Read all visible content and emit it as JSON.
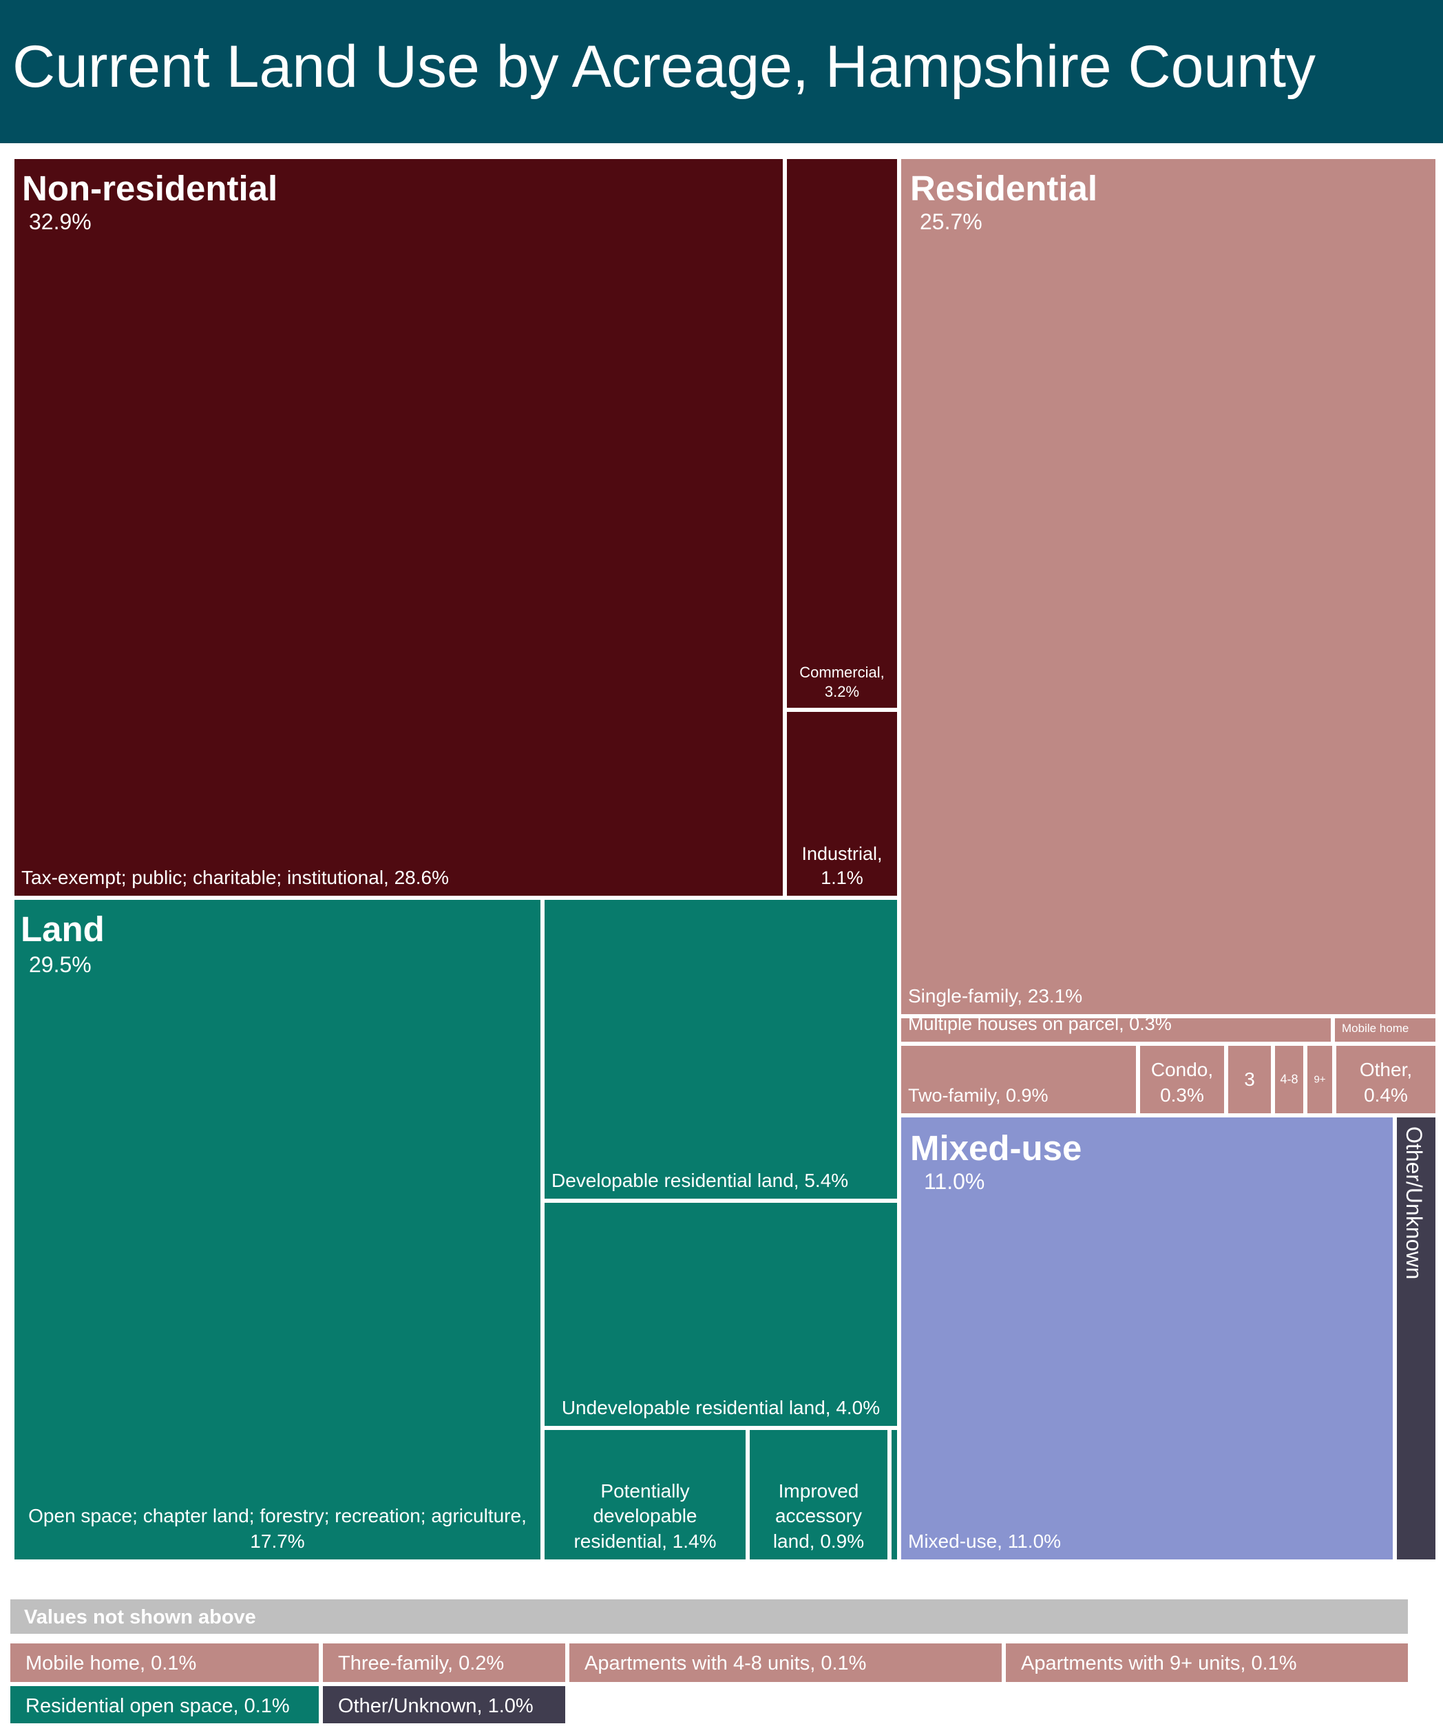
{
  "title": "Current Land Use by Acreage, Hampshire County",
  "colors": {
    "title_bg": "#024e5f",
    "non_residential": "#4f0a11",
    "land": "#087b6c",
    "residential": "#be8985",
    "mixed_use": "#8994d0",
    "other_unknown": "#403d4f",
    "not_shown_header": "#bfbfbf"
  },
  "chart_data": {
    "type": "treemap",
    "title": "Current Land Use by Acreage, Hampshire County",
    "unit": "% of acreage",
    "groups": [
      {
        "name": "Non-residential",
        "total_label": "32.9%",
        "value": 32.9,
        "items": [
          {
            "label": "Tax-exempt; public; charitable; institutional, 28.6%",
            "value": 28.6
          },
          {
            "label": "Commercial, 3.2%",
            "value": 3.2
          },
          {
            "label": "Industrial, 1.1%",
            "value": 1.1
          }
        ]
      },
      {
        "name": "Land",
        "total_label": "29.5%",
        "value": 29.5,
        "items": [
          {
            "label": "Open space; chapter land; forestry; recreation; agriculture, 17.7%",
            "value": 17.7
          },
          {
            "label": "Developable residential land, 5.4%",
            "value": 5.4
          },
          {
            "label": "Undevelopable residential land, 4.0%",
            "value": 4.0
          },
          {
            "label": "Potentially developable residential, 1.4%",
            "value": 1.4
          },
          {
            "label": "Improved accessory land, 0.9%",
            "value": 0.9
          },
          {
            "label": "Residential open space",
            "value": 0.1
          }
        ]
      },
      {
        "name": "Residential",
        "total_label": "25.7%",
        "value": 25.7,
        "items": [
          {
            "label": "Single-family, 23.1%",
            "value": 23.1
          },
          {
            "label": "Multiple houses on parcel, 0.3%",
            "value": 0.3
          },
          {
            "label": "Mobile home",
            "value": 0.1
          },
          {
            "label": "Two-family, 0.9%",
            "value": 0.9
          },
          {
            "label": "Condo, 0.3%",
            "value": 0.3
          },
          {
            "label": "3",
            "value": 0.2
          },
          {
            "label": "4-8",
            "value": 0.1
          },
          {
            "label": "9+",
            "value": 0.1
          },
          {
            "label": "Other, 0.4%",
            "value": 0.4
          }
        ]
      },
      {
        "name": "Mixed-use",
        "total_label": "11.0%",
        "value": 11.0,
        "items": [
          {
            "label": "Mixed-use, 11.0%",
            "value": 11.0
          }
        ]
      },
      {
        "name": "Other/Unknown",
        "total_label": "",
        "value": 1.0,
        "items": [
          {
            "label": "Other/Unknown",
            "value": 1.0
          }
        ]
      }
    ],
    "not_shown": {
      "header": "Values not shown above",
      "items": [
        {
          "label": "Mobile home, 0.1%",
          "group": "Residential"
        },
        {
          "label": "Three-family, 0.2%",
          "group": "Residential"
        },
        {
          "label": "Apartments with 4-8 units, 0.1%",
          "group": "Residential"
        },
        {
          "label": "Apartments with 9+ units, 0.1%",
          "group": "Residential"
        },
        {
          "label": "Residential open space, 0.1%",
          "group": "Land"
        },
        {
          "label": "Other/Unknown,  1.0%",
          "group": "Other/Unknown"
        }
      ]
    }
  }
}
